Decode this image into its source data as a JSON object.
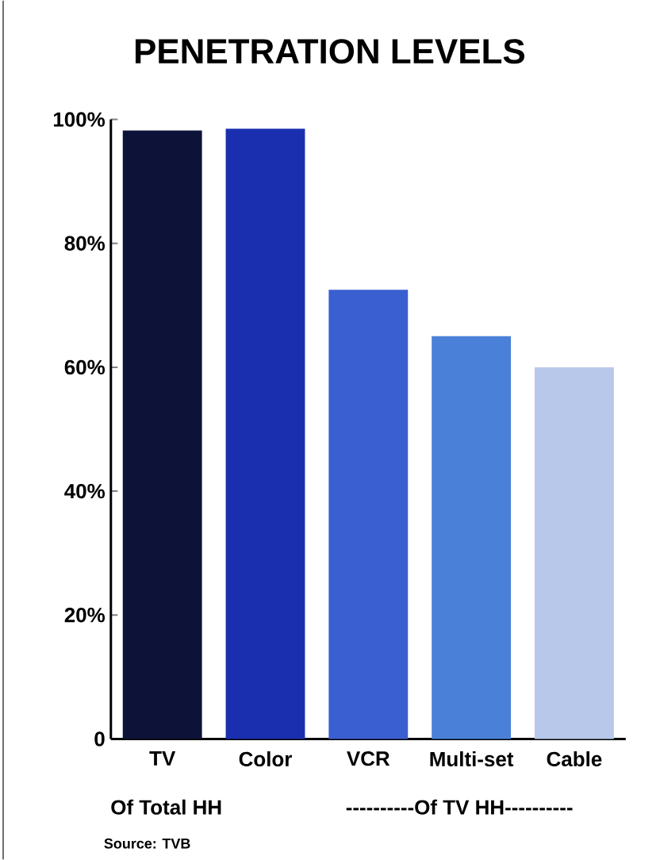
{
  "chart_data": {
    "type": "bar",
    "title": "PENETRATION LEVELS",
    "categories": [
      "TV",
      "Color",
      "VCR",
      "Multi-set",
      "Cable"
    ],
    "values": [
      98.2,
      98.5,
      72.5,
      65,
      60
    ],
    "colors": [
      "#0d1338",
      "#1a2fb0",
      "#3a5fd0",
      "#4a80d8",
      "#b8c8ea"
    ],
    "ylim": [
      0,
      100
    ],
    "yticks": [
      0,
      {
        "value": 20,
        "label": "20%"
      },
      {
        "value": 40,
        "label": "40%"
      },
      {
        "value": 60,
        "label": "60%"
      },
      {
        "value": 80,
        "label": "80%"
      },
      {
        "value": 100,
        "label": "100%"
      }
    ],
    "grid": false,
    "annotations": [
      "Of Total HH",
      "----------Of TV HH----------",
      "Source: TVB"
    ]
  }
}
